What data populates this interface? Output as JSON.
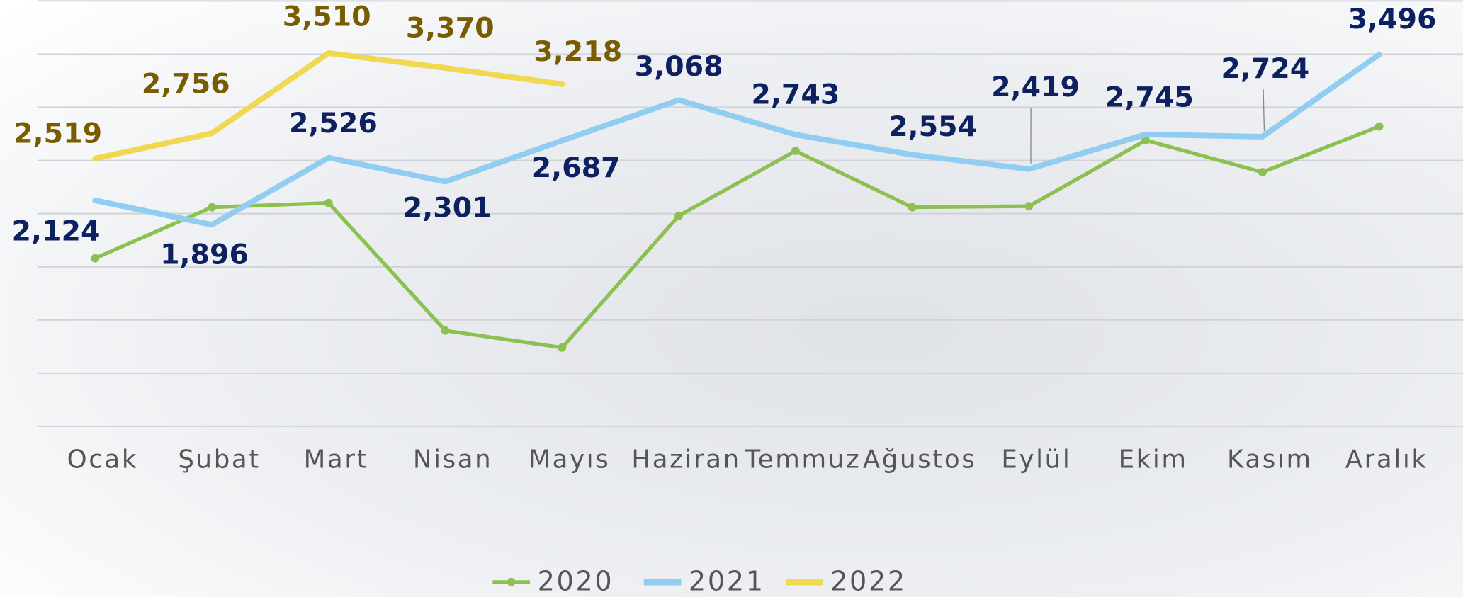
{
  "chart_data": {
    "type": "line",
    "categories": [
      "Ocak",
      "Şubat",
      "Mart",
      "Nisan",
      "Mayıs",
      "Haziran",
      "Temmuz",
      "Ağustos",
      "Eylül",
      "Ekim",
      "Kasım",
      "Aralık"
    ],
    "series": [
      {
        "name": "2020",
        "color": "#8cc152",
        "values": [
          1580,
          2060,
          2100,
          900,
          740,
          1980,
          2590,
          2060,
          2070,
          2690,
          2390,
          2820
        ]
      },
      {
        "name": "2021",
        "color": "#90cdf0",
        "label_color": "#0d2060",
        "values": [
          2124,
          1896,
          2526,
          2301,
          2687,
          3068,
          2743,
          2554,
          2419,
          2745,
          2724,
          3496
        ],
        "value_labels": [
          "2,124",
          "1,896",
          "2,526",
          "2,301",
          "2,687",
          "3,068",
          "2,743",
          "2,554",
          "2,419",
          "2,745",
          "2,724",
          "3,496"
        ]
      },
      {
        "name": "2022",
        "color": "#f0d850",
        "label_color": "#7a5c00",
        "values": [
          2519,
          2756,
          3510,
          3370,
          3218,
          null,
          null,
          null,
          null,
          null,
          null,
          null
        ],
        "value_labels": [
          "2,519",
          "2,756",
          "3,510",
          "3,370",
          "3,218",
          null,
          null,
          null,
          null,
          null,
          null,
          null
        ]
      }
    ],
    "ylim": [
      0,
      4000
    ],
    "yticks": [
      0,
      500,
      1000,
      1500,
      2000,
      2500,
      3000,
      3500,
      4000
    ],
    "grid": true,
    "legend": "bottom"
  }
}
